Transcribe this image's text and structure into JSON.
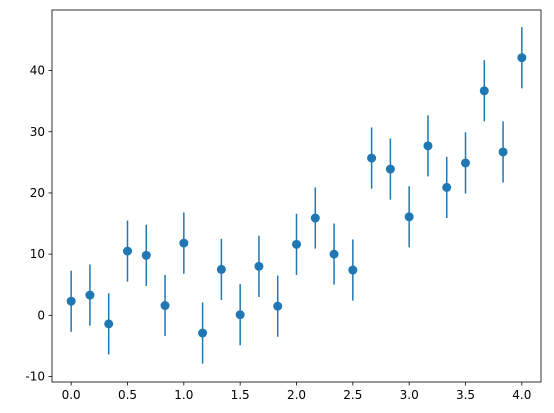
{
  "chart_data": {
    "type": "errorbar",
    "x": [
      0,
      0.1667,
      0.3333,
      0.5,
      0.6667,
      0.8333,
      1.0,
      1.1667,
      1.3333,
      1.5,
      1.6667,
      1.8333,
      2.0,
      2.1667,
      2.3333,
      2.5,
      2.6667,
      2.8333,
      3.0,
      3.1667,
      3.3333,
      3.5,
      3.6667,
      3.8333,
      4.0
    ],
    "values": [
      2.3,
      3.3,
      -1.4,
      10.5,
      9.8,
      1.6,
      11.8,
      -2.9,
      7.5,
      0.1,
      8.0,
      1.5,
      11.6,
      15.9,
      10.0,
      7.4,
      25.7,
      23.9,
      16.1,
      27.7,
      20.9,
      24.9,
      36.7,
      26.7,
      42.1
    ],
    "yerr": [
      5,
      5,
      5,
      5,
      5,
      5,
      5,
      5,
      5,
      5,
      5,
      5,
      5,
      5,
      5,
      5,
      5,
      5,
      5,
      5,
      5,
      5,
      5,
      5,
      5
    ],
    "color": "#1f77b4",
    "xlim": [
      -0.17,
      4.17
    ],
    "xticks": [
      {
        "value": 0,
        "label": "0.0"
      },
      {
        "value": 0.5,
        "label": "0.5"
      },
      {
        "value": 1,
        "label": "1.0"
      },
      {
        "value": 1.5,
        "label": "1.5"
      },
      {
        "value": 2,
        "label": "2.0"
      },
      {
        "value": 2.5,
        "label": "2.5"
      },
      {
        "value": 3,
        "label": "3.0"
      },
      {
        "value": 3.5,
        "label": "3.5"
      },
      {
        "value": 4,
        "label": "4.0"
      }
    ],
    "ylim": [
      -10.9,
      49.9
    ],
    "yticks": [
      -10,
      0,
      10,
      20,
      30,
      40
    ]
  }
}
